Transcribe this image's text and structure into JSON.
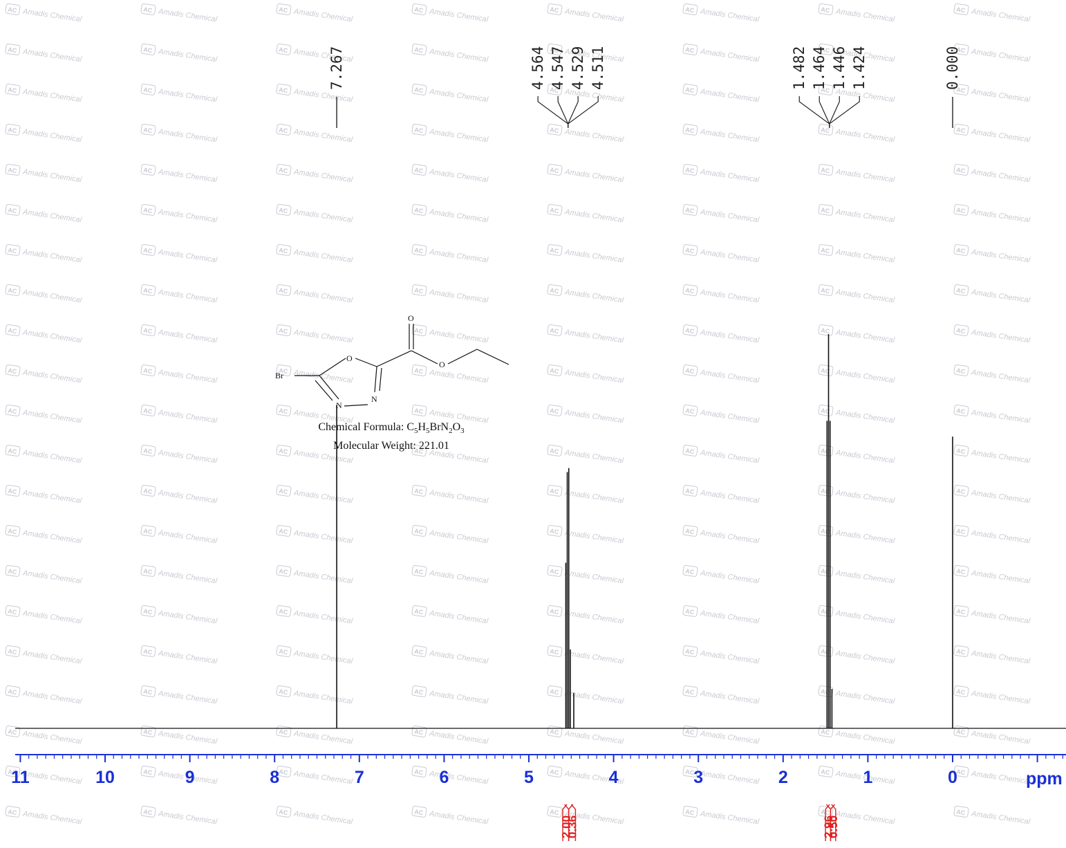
{
  "watermark": {
    "text": "Amadis Chemical",
    "logo": "AC"
  },
  "structure": {
    "atoms": {
      "br": "Br",
      "o_ring": "O",
      "n1": "N",
      "n2": "N",
      "o_carbonyl": "O",
      "o_ester": "O"
    },
    "formula_label": "Chemical Formula: ",
    "formula_parts": [
      {
        "t": "C"
      },
      {
        "t": "5",
        "sub": true
      },
      {
        "t": "H"
      },
      {
        "t": "5",
        "sub": true
      },
      {
        "t": "BrN"
      },
      {
        "t": "2",
        "sub": true
      },
      {
        "t": "O"
      },
      {
        "t": "3",
        "sub": true
      }
    ],
    "weight_text": "Molecular Weight: 221.01"
  },
  "chart_data": {
    "type": "line",
    "title": "",
    "xlabel": "ppm",
    "ylabel": "",
    "x_reversed": true,
    "xlim": [
      11.0,
      -1.3
    ],
    "x_ticks": [
      11,
      10,
      9,
      8,
      7,
      6,
      5,
      4,
      3,
      2,
      1,
      0
    ],
    "x_tick_labels": [
      "11",
      "10",
      "9",
      "8",
      "7",
      "6",
      "5",
      "4",
      "3",
      "2",
      "1",
      "0"
    ],
    "peak_labels": [
      {
        "group": "7.267",
        "labels": [
          "7.267"
        ],
        "shifts": [
          7.267
        ]
      },
      {
        "group": "4.5",
        "labels": [
          "4.564",
          "4.547",
          "4.529",
          "4.511"
        ],
        "shifts": [
          4.564,
          4.547,
          4.529,
          4.511
        ]
      },
      {
        "group": "1.4",
        "labels": [
          "1.482",
          "1.464",
          "1.446",
          "1.424"
        ],
        "shifts": [
          1.482,
          1.464,
          1.446,
          1.424
        ]
      },
      {
        "group": "0.000",
        "labels": [
          "0.000"
        ],
        "shifts": [
          0.0
        ]
      }
    ],
    "peaks": [
      {
        "shift": 7.267,
        "intensity": 0.82
      },
      {
        "shift": 4.564,
        "intensity": 0.42
      },
      {
        "shift": 4.547,
        "intensity": 0.65
      },
      {
        "shift": 4.529,
        "intensity": 0.66
      },
      {
        "shift": 4.511,
        "intensity": 0.2
      },
      {
        "shift": 4.47,
        "intensity": 0.09
      },
      {
        "shift": 1.482,
        "intensity": 0.78
      },
      {
        "shift": 1.464,
        "intensity": 1.0
      },
      {
        "shift": 1.446,
        "intensity": 0.78
      },
      {
        "shift": 1.424,
        "intensity": 0.1
      },
      {
        "shift": 0.0,
        "intensity": 0.74
      }
    ],
    "integrals": [
      {
        "from": 4.6,
        "to": 4.53,
        "value": "2.00"
      },
      {
        "from": 4.53,
        "to": 4.45,
        "value": "0.36"
      },
      {
        "from": 1.5,
        "to": 1.44,
        "value": "2.96"
      },
      {
        "from": 1.44,
        "to": 1.38,
        "value": "0.50"
      }
    ],
    "colors": {
      "axis": "#1a2fd6",
      "spectrum": "#111111",
      "integral": "#e02020",
      "watermark": "#c9cbd2"
    }
  }
}
